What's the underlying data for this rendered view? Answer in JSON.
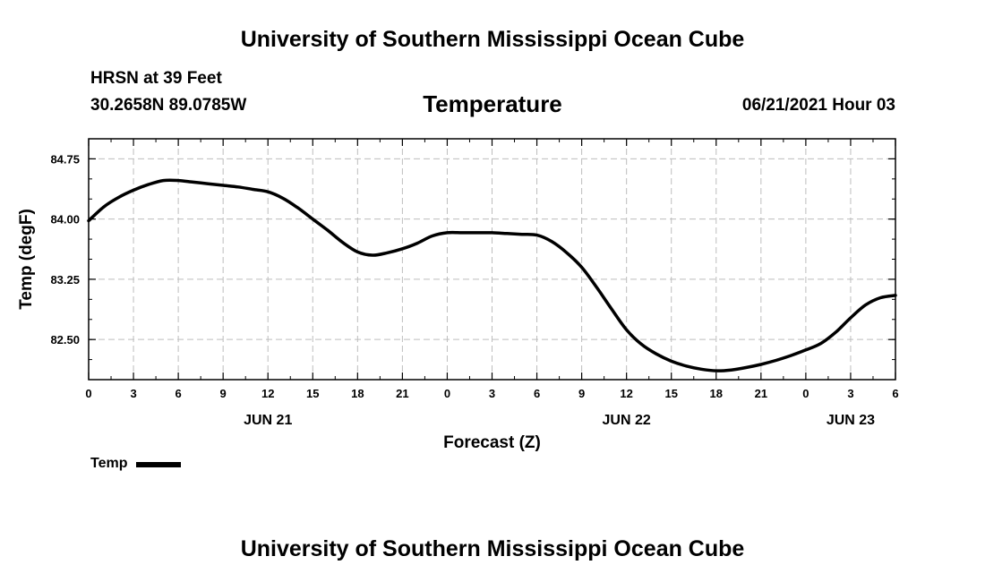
{
  "header": {
    "title": "University of Southern Mississippi Ocean Cube",
    "station": "HRSN at 39 Feet",
    "coordinates": "30.2658N  89.0785W",
    "variable": "Temperature",
    "datetime": "06/21/2021 Hour 03"
  },
  "footer": {
    "title": "University of Southern Mississippi Ocean Cube"
  },
  "legend": {
    "label": "Temp",
    "color": "#000000"
  },
  "chart_data": {
    "type": "line",
    "title": "Temperature",
    "xlabel": "Forecast (Z)",
    "ylabel": "Temp (degF)",
    "xlim": [
      0,
      54
    ],
    "ylim": [
      82.0,
      85.0
    ],
    "x_tick_values": [
      0,
      3,
      6,
      9,
      12,
      15,
      18,
      21,
      24,
      27,
      30,
      33,
      36,
      39,
      42,
      45,
      48,
      51,
      54
    ],
    "x_tick_labels": [
      "0",
      "3",
      "6",
      "9",
      "12",
      "15",
      "18",
      "21",
      "0",
      "3",
      "6",
      "9",
      "12",
      "15",
      "18",
      "21",
      "0",
      "3",
      "6"
    ],
    "day_labels": [
      {
        "x": 12,
        "label": "JUN 21"
      },
      {
        "x": 36,
        "label": "JUN 22"
      },
      {
        "x": 51,
        "label": "JUN 23"
      }
    ],
    "y_ticks": [
      82.5,
      83.25,
      84.0,
      84.75
    ],
    "y_tick_labels": [
      "82.50",
      "83.25",
      "84.00",
      "84.75"
    ],
    "grid": true,
    "series": [
      {
        "name": "Temp",
        "color": "#000000",
        "x": [
          0,
          1,
          2,
          3,
          4,
          5,
          6,
          7,
          8,
          9,
          10,
          11,
          12,
          13,
          14,
          15,
          16,
          17,
          18,
          19,
          20,
          21,
          22,
          23,
          24,
          25,
          26,
          27,
          28,
          29,
          30,
          31,
          32,
          33,
          34,
          35,
          36,
          37,
          38,
          39,
          40,
          41,
          42,
          43,
          44,
          45,
          46,
          47,
          48,
          49,
          50,
          51,
          52,
          53,
          54
        ],
        "values": [
          83.98,
          84.15,
          84.27,
          84.36,
          84.43,
          84.48,
          84.48,
          84.46,
          84.44,
          84.42,
          84.4,
          84.37,
          84.34,
          84.26,
          84.14,
          84.0,
          83.86,
          83.71,
          83.59,
          83.55,
          83.58,
          83.63,
          83.7,
          83.79,
          83.83,
          83.83,
          83.83,
          83.83,
          83.82,
          83.81,
          83.8,
          83.72,
          83.58,
          83.4,
          83.15,
          82.88,
          82.62,
          82.44,
          82.32,
          82.23,
          82.17,
          82.13,
          82.11,
          82.12,
          82.15,
          82.19,
          82.24,
          82.3,
          82.37,
          82.45,
          82.59,
          82.77,
          82.93,
          83.02,
          83.05
        ]
      }
    ]
  }
}
